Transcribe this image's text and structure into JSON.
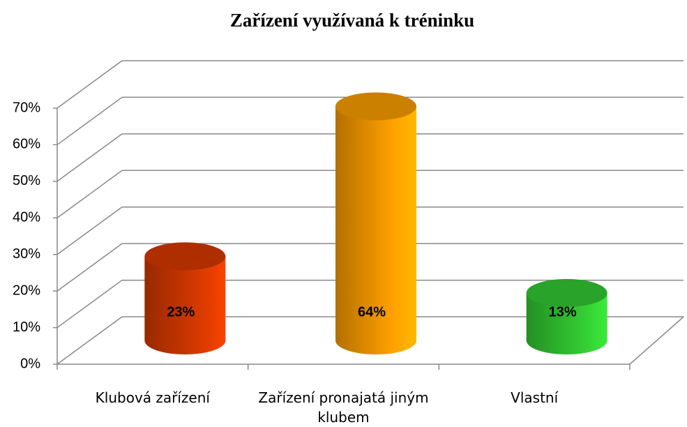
{
  "chart_data": {
    "type": "bar3d",
    "title": "Zařízení využívaná k tréninku",
    "categories": [
      "Klubová zařízení",
      "Zařízení pronajatá jiným klubem",
      "Vlastní"
    ],
    "values": [
      23,
      64,
      13
    ],
    "value_labels": [
      "23%",
      "64%",
      "13%"
    ],
    "colors": [
      "#d93a00",
      "#ffa000",
      "#33cc33"
    ],
    "ylim": [
      0,
      70
    ],
    "yticks": [
      {
        "value": 0,
        "label": "0%"
      },
      {
        "value": 10,
        "label": "10%"
      },
      {
        "value": 20,
        "label": "20%"
      },
      {
        "value": 30,
        "label": "30%"
      },
      {
        "value": 40,
        "label": "40%"
      },
      {
        "value": 50,
        "label": "50%"
      },
      {
        "value": 60,
        "label": "60%"
      },
      {
        "value": 70,
        "label": "70%"
      }
    ],
    "grid": true
  }
}
